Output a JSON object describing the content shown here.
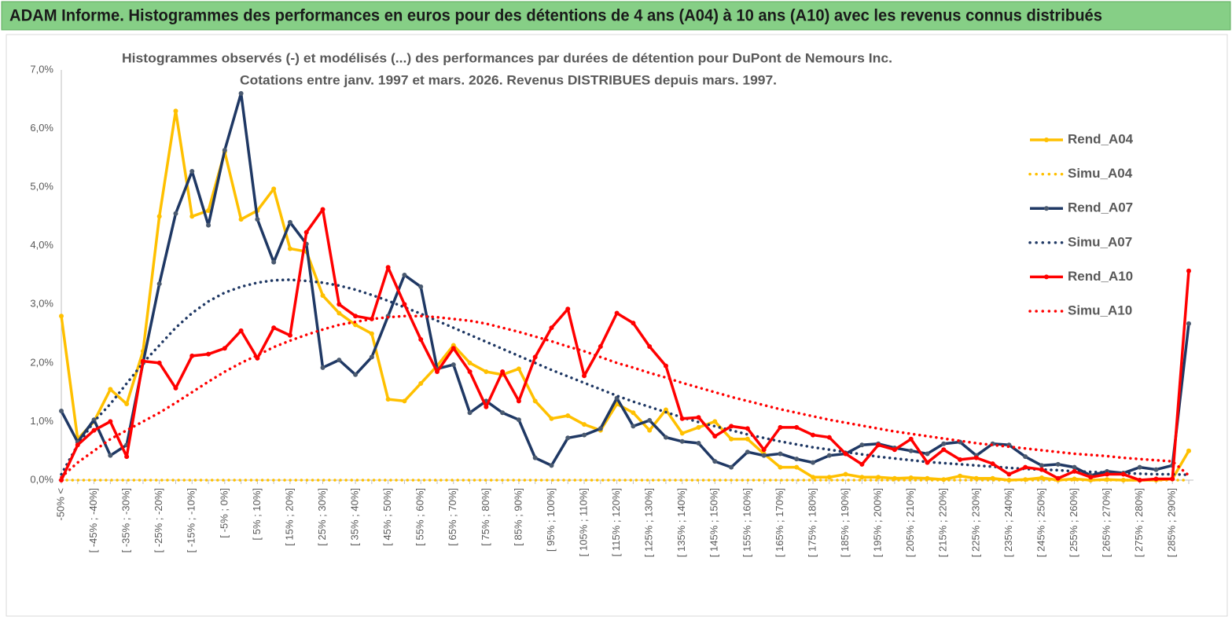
{
  "chart_data": {
    "type": "line",
    "title": "ADAM Informe. Histogrammes des performances en euros pour des détentions de 4 ans (A04) à 10 ans (A10) avec les revenus connus distribués",
    "subtitle": [
      "Histogrammes observés (-) et modélisés (...) des performances par durées de détention pour DuPont de Nemours Inc.",
      "Cotations entre janv. 1997 et mars. 2026. Revenus DISTRIBUES depuis mars. 1997."
    ],
    "categories": [
      "-50% <",
      null,
      "[ -45% ; -40%]",
      null,
      "[ -35% ; -30%]",
      null,
      "[ -25% ; -20%]",
      null,
      "[ -15% ; -10%]",
      null,
      "[ -5% ; 0%]",
      null,
      "[ 5% ; 10%]",
      null,
      "[ 15% ; 20%]",
      null,
      "[ 25% ; 30%]",
      null,
      "[ 35% ; 40%]",
      null,
      "[ 45% ; 50%]",
      null,
      "[ 55% ; 60%]",
      null,
      "[ 65% ; 70%]",
      null,
      "[ 75% ; 80%]",
      null,
      "[ 85% ; 90%]",
      null,
      "[ 95% ; 100%]",
      null,
      "[ 105% ; 110%]",
      null,
      "[ 115% ; 120%]",
      null,
      "[ 125% ; 130%]",
      null,
      "[ 135% ; 140%]",
      null,
      "[ 145% ; 150%]",
      null,
      "[ 155% ; 160%]",
      null,
      "[ 165% ; 170%]",
      null,
      "[ 175% ; 180%]",
      null,
      "[ 185% ; 190%]",
      null,
      "[ 195% ; 200%]",
      null,
      "[ 205% ; 210%]",
      null,
      "[ 215% ; 220%]",
      null,
      "[ 225% ; 230%]",
      null,
      "[ 235% ; 240%]",
      null,
      "[ 245% ; 250%]",
      null,
      "[ 255% ; 260%]",
      null,
      "[ 265% ; 270%]",
      null,
      "[ 275% ; 280%]",
      null,
      "[ 285% ; 290%]",
      null
    ],
    "ylim": [
      0,
      7
    ],
    "yticks": [
      {
        "value": 0,
        "label": "0,0%"
      },
      {
        "value": 1,
        "label": "1,0%"
      },
      {
        "value": 2,
        "label": "2,0%"
      },
      {
        "value": 3,
        "label": "3,0%"
      },
      {
        "value": 4,
        "label": "4,0%"
      },
      {
        "value": 5,
        "label": "5,0%"
      },
      {
        "value": 6,
        "label": "6,0%"
      },
      {
        "value": 7,
        "label": "7,0%"
      }
    ],
    "grid": false,
    "legend": "right",
    "series": [
      {
        "name": "Rend_A04",
        "color": "#ffc000",
        "style": "solid",
        "markers": true,
        "values": [
          2.8,
          0.7,
          1.0,
          1.55,
          1.3,
          2.2,
          4.5,
          6.3,
          4.5,
          4.6,
          5.6,
          4.45,
          4.6,
          4.97,
          3.95,
          3.9,
          3.15,
          2.85,
          2.65,
          2.5,
          1.38,
          1.35,
          1.65,
          1.95,
          2.3,
          2.0,
          1.85,
          1.8,
          1.9,
          1.35,
          1.05,
          1.1,
          0.95,
          0.85,
          1.3,
          1.15,
          0.85,
          1.2,
          0.8,
          0.9,
          1.0,
          0.7,
          0.7,
          0.45,
          0.22,
          0.22,
          0.05,
          0.05,
          0.1,
          0.05,
          0.05,
          0.03,
          0.04,
          0.03,
          0.01,
          0.07,
          0.03,
          0.03,
          0.0,
          0.01,
          0.04,
          0.0,
          0.02,
          0.0,
          0.01,
          0.0,
          0.0,
          0.0,
          0.02,
          0.5
        ]
      },
      {
        "name": "Simu_A04",
        "color": "#ffc000",
        "style": "dotted",
        "markers": false,
        "values": [
          0,
          0,
          0,
          0,
          0,
          0,
          0,
          0,
          0,
          0,
          0,
          0,
          0,
          0,
          0,
          0,
          0,
          0,
          0,
          0,
          0,
          0,
          0,
          0,
          0,
          0,
          0,
          0,
          0,
          0,
          0,
          0,
          0,
          0,
          0,
          0,
          0,
          0,
          0,
          0,
          0,
          0,
          0,
          0,
          0,
          0,
          0,
          0,
          0,
          0,
          0,
          0,
          0,
          0,
          0,
          0,
          0,
          0,
          0,
          0,
          0,
          0,
          0,
          0,
          0,
          0,
          0,
          0,
          0,
          0
        ]
      },
      {
        "name": "Rend_A07",
        "color": "#1f3864",
        "style": "solid",
        "markers": true,
        "values": [
          1.18,
          0.65,
          1.03,
          0.42,
          0.6,
          2.0,
          3.35,
          4.55,
          5.27,
          4.35,
          5.63,
          6.6,
          4.45,
          3.72,
          4.4,
          4.03,
          1.92,
          2.05,
          1.8,
          2.1,
          2.8,
          3.5,
          3.3,
          1.9,
          1.97,
          1.15,
          1.35,
          1.15,
          1.03,
          0.38,
          0.25,
          0.72,
          0.77,
          0.88,
          1.4,
          0.92,
          1.02,
          0.73,
          0.66,
          0.63,
          0.32,
          0.22,
          0.48,
          0.42,
          0.45,
          0.36,
          0.3,
          0.42,
          0.45,
          0.6,
          0.62,
          0.55,
          0.5,
          0.45,
          0.62,
          0.65,
          0.42,
          0.62,
          0.6,
          0.4,
          0.25,
          0.27,
          0.22,
          0.08,
          0.15,
          0.12,
          0.22,
          0.18,
          0.25,
          2.67
        ]
      },
      {
        "name": "Simu_A07",
        "color": "#1f3864",
        "style": "dotted",
        "markers": false,
        "values": [
          0.1,
          0.6,
          1.0,
          1.3,
          1.65,
          2.0,
          2.3,
          2.6,
          2.85,
          3.05,
          3.2,
          3.3,
          3.37,
          3.41,
          3.42,
          3.4,
          3.37,
          3.32,
          3.25,
          3.16,
          3.06,
          2.95,
          2.84,
          2.72,
          2.6,
          2.48,
          2.36,
          2.24,
          2.12,
          2.0,
          1.88,
          1.77,
          1.66,
          1.55,
          1.44,
          1.34,
          1.25,
          1.16,
          1.07,
          0.99,
          0.92,
          0.85,
          0.78,
          0.72,
          0.66,
          0.61,
          0.56,
          0.52,
          0.48,
          0.44,
          0.4,
          0.37,
          0.34,
          0.31,
          0.29,
          0.27,
          0.25,
          0.23,
          0.21,
          0.19,
          0.18,
          0.17,
          0.15,
          0.14,
          0.13,
          0.12,
          0.11,
          0.1,
          0.1,
          0.09
        ]
      },
      {
        "name": "Rend_A10",
        "color": "#ff0000",
        "style": "solid",
        "markers": true,
        "values": [
          0.0,
          0.6,
          0.85,
          1.0,
          0.4,
          2.03,
          2.0,
          1.57,
          2.12,
          2.15,
          2.25,
          2.55,
          2.08,
          2.6,
          2.47,
          4.23,
          4.62,
          3.0,
          2.8,
          2.75,
          3.63,
          3.0,
          2.4,
          1.85,
          2.25,
          1.85,
          1.25,
          1.85,
          1.35,
          2.1,
          2.6,
          2.92,
          1.78,
          2.28,
          2.85,
          2.68,
          2.28,
          1.95,
          1.05,
          1.07,
          0.75,
          0.92,
          0.88,
          0.52,
          0.9,
          0.9,
          0.77,
          0.73,
          0.45,
          0.27,
          0.6,
          0.52,
          0.7,
          0.3,
          0.52,
          0.35,
          0.38,
          0.28,
          0.1,
          0.22,
          0.18,
          0.03,
          0.15,
          0.05,
          0.1,
          0.1,
          0.0,
          0.02,
          0.02,
          3.57
        ]
      },
      {
        "name": "Simu_A10",
        "color": "#ff0000",
        "style": "dotted",
        "markers": false,
        "values": [
          0.05,
          0.3,
          0.5,
          0.7,
          0.85,
          1.0,
          1.15,
          1.32,
          1.5,
          1.68,
          1.85,
          2.0,
          2.13,
          2.27,
          2.38,
          2.48,
          2.57,
          2.65,
          2.7,
          2.75,
          2.78,
          2.8,
          2.8,
          2.78,
          2.75,
          2.72,
          2.67,
          2.6,
          2.53,
          2.45,
          2.37,
          2.28,
          2.2,
          2.1,
          2.0,
          1.92,
          1.83,
          1.75,
          1.66,
          1.58,
          1.5,
          1.42,
          1.35,
          1.28,
          1.21,
          1.15,
          1.09,
          1.03,
          0.98,
          0.93,
          0.88,
          0.83,
          0.79,
          0.75,
          0.71,
          0.67,
          0.63,
          0.6,
          0.57,
          0.54,
          0.51,
          0.48,
          0.45,
          0.43,
          0.41,
          0.38,
          0.36,
          0.34,
          0.32,
          0.08
        ]
      }
    ]
  }
}
